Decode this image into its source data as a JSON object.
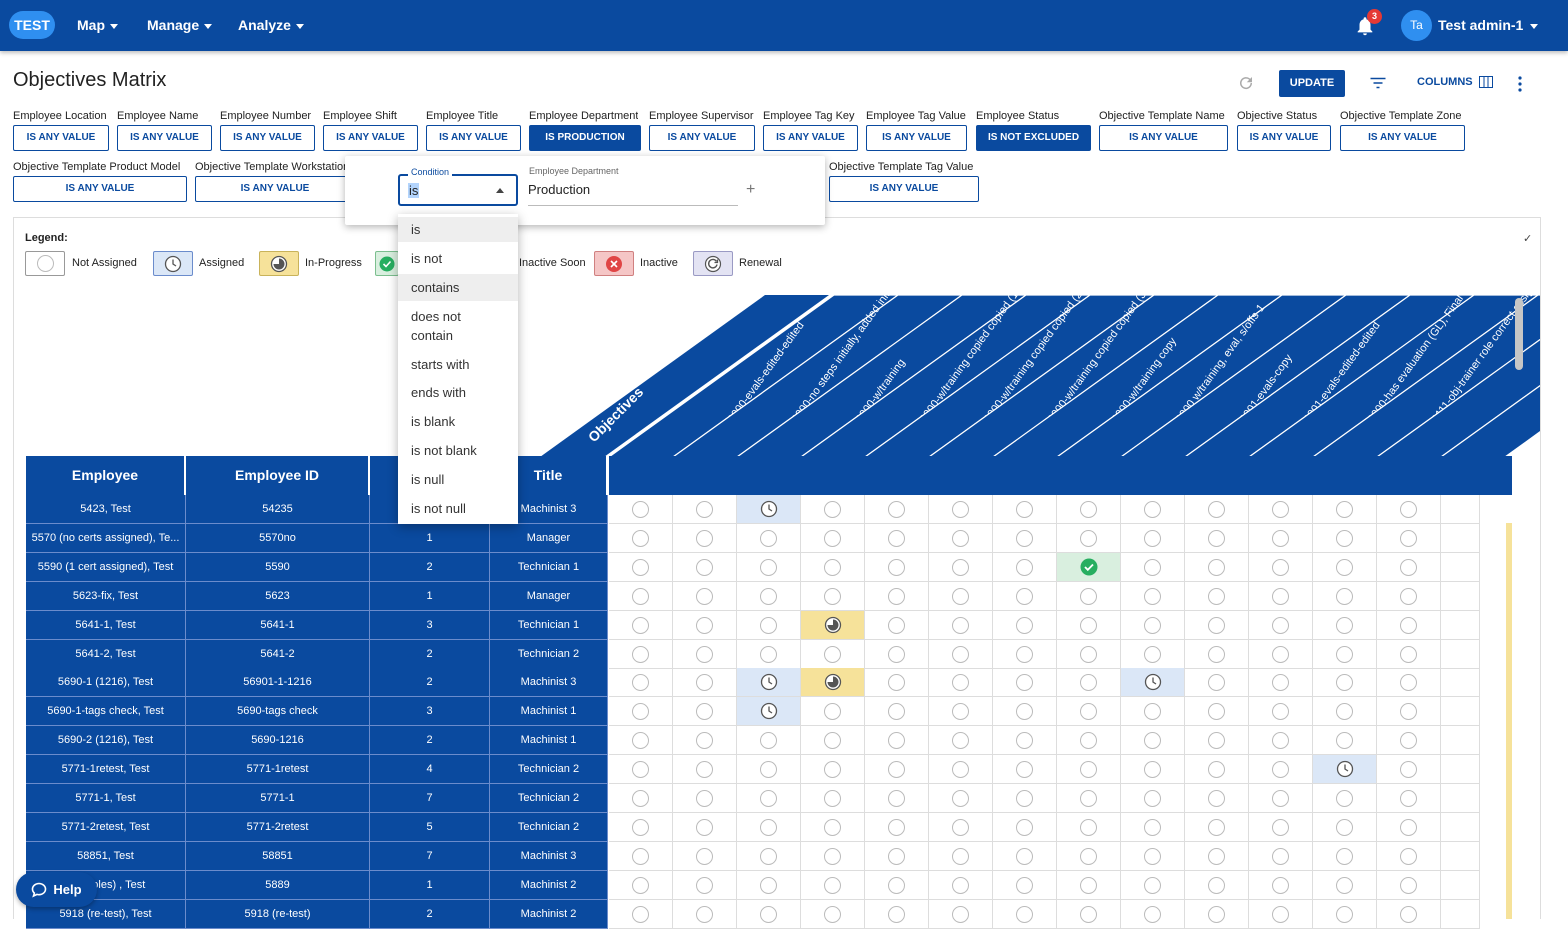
{
  "app": {
    "logo": "TEST",
    "nav": [
      "Map",
      "Manage",
      "Analyze"
    ],
    "notification_count": "3",
    "avatar_initials": "Ta",
    "user_name": "Test admin-1"
  },
  "page": {
    "title": "Objectives Matrix",
    "update_label": "UPDATE",
    "columns_label": "COLUMNS"
  },
  "filters": [
    {
      "label": "Employee Location",
      "value": "IS ANY VALUE"
    },
    {
      "label": "Employee Name",
      "value": "IS ANY VALUE"
    },
    {
      "label": "Employee Number",
      "value": "IS ANY VALUE"
    },
    {
      "label": "Employee Shift",
      "value": "IS ANY VALUE"
    },
    {
      "label": "Employee Title",
      "value": "IS ANY VALUE"
    },
    {
      "label": "Employee Department",
      "value": "IS PRODUCTION"
    },
    {
      "label": "Employee Supervisor",
      "value": "IS ANY VALUE"
    },
    {
      "label": "Employee Tag Key",
      "value": "IS ANY VALUE"
    },
    {
      "label": "Employee Tag Value",
      "value": "IS ANY VALUE"
    },
    {
      "label": "Employee Status",
      "value": "IS NOT EXCLUDED"
    },
    {
      "label": "Objective Template Name",
      "value": "IS ANY VALUE"
    },
    {
      "label": "Objective Status",
      "value": "IS ANY VALUE"
    },
    {
      "label": "Objective Template Zone",
      "value": "IS ANY VALUE"
    },
    {
      "label": "Objective Template Product Model",
      "value": "IS ANY VALUE"
    },
    {
      "label": "Objective Template Workstation",
      "value": "IS ANY VALUE"
    },
    {
      "label": "Objective Template Tag Value",
      "value": "IS ANY VALUE"
    }
  ],
  "popup": {
    "condition_label": "Condition",
    "condition_value": "is",
    "field_label": "Employee Department",
    "field_value": "Production",
    "options": [
      "is",
      "is not",
      "contains",
      "does not contain",
      "starts with",
      "ends with",
      "is blank",
      "is not blank",
      "is null",
      "is not null"
    ]
  },
  "legend": {
    "title": "Legend:",
    "items": [
      "Not Assigned",
      "Assigned",
      "In-Progress",
      "Inactive Soon",
      "Inactive",
      "Renewal"
    ],
    "colors": {
      "assigned": "#dbe7f7",
      "in_progress": "#f6e29a",
      "complete": "#27ae60",
      "inactive": "#e04545",
      "renewal": "#e3e3f3"
    }
  },
  "matrix": {
    "objectives_header": "Objectives",
    "columns": [
      "Employee",
      "Employee ID",
      "",
      "Title"
    ],
    "objective_names": [
      "0000-evals-edited-edited",
      "0000-no steps initially, added initial, Final s/off",
      "0000-w/training",
      "0000-w/training copied copied (1)",
      "0000-w/training copied copied (2)",
      "0000-w/training copied copied (3)",
      "0000-w/training copy",
      "0000 w/training, eval, s/offs-1",
      "0001-evals-copy",
      "0001-evals-edited-edited",
      "0000-has evaluation (GL), Final GL s/off, no trainings",
      "0111-obj-trainer role correct assignee's role"
    ],
    "rows": [
      {
        "name": "5423, Test",
        "id": "54235",
        "num": "",
        "title": "Machinist 3"
      },
      {
        "name": "5570 (no certs assigned), Te...",
        "id": "5570no",
        "num": "1",
        "title": "Manager"
      },
      {
        "name": "5590 (1 cert assigned), Test",
        "id": "5590",
        "num": "2",
        "title": "Technician 1"
      },
      {
        "name": "5623-fix, Test",
        "id": "5623",
        "num": "1",
        "title": "Manager"
      },
      {
        "name": "5641-1, Test",
        "id": "5641-1",
        "num": "3",
        "title": "Technician 1"
      },
      {
        "name": "5641-2, Test",
        "id": "5641-2",
        "num": "2",
        "title": "Technician 2"
      },
      {
        "name": "5690-1 (1216), Test",
        "id": "56901-1-1216",
        "num": "2",
        "title": "Machinist 3"
      },
      {
        "name": "5690-1-tags check, Test",
        "id": "5690-tags check",
        "num": "3",
        "title": "Machinist 1"
      },
      {
        "name": "5690-2 (1216), Test",
        "id": "5690-1216",
        "num": "2",
        "title": "Machinist 1"
      },
      {
        "name": "5771-1retest, Test",
        "id": "5771-1retest",
        "num": "4",
        "title": "Technician 2"
      },
      {
        "name": "5771-1, Test",
        "id": "5771-1",
        "num": "7",
        "title": "Technician 2"
      },
      {
        "name": "5771-2retest, Test",
        "id": "5771-2retest",
        "num": "5",
        "title": "Technician 2"
      },
      {
        "name": "58851, Test",
        "id": "58851",
        "num": "7",
        "title": "Machinist 3"
      },
      {
        "name": "na's roles) , Test",
        "id": "5889",
        "num": "1",
        "title": "Machinist 2"
      },
      {
        "name": "5918 (re-test), Test",
        "id": "5918 (re-test)",
        "num": "2",
        "title": "Machinist 2"
      }
    ],
    "status_cells": [
      {
        "row": 0,
        "col": 2,
        "status": "assigned"
      },
      {
        "row": 2,
        "col": 7,
        "status": "complete"
      },
      {
        "row": 4,
        "col": 3,
        "status": "in_progress"
      },
      {
        "row": 6,
        "col": 2,
        "status": "assigned"
      },
      {
        "row": 6,
        "col": 3,
        "status": "in_progress"
      },
      {
        "row": 6,
        "col": 8,
        "status": "assigned"
      },
      {
        "row": 7,
        "col": 2,
        "status": "assigned"
      },
      {
        "row": 9,
        "col": 11,
        "status": "assigned"
      }
    ]
  },
  "help_label": "Help"
}
